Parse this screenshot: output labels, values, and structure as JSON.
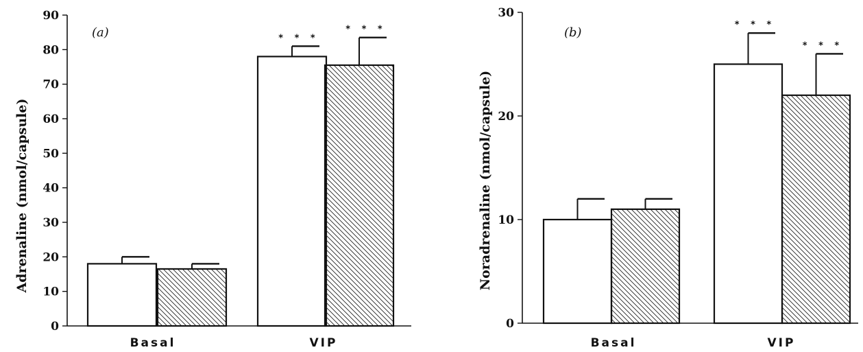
{
  "chart_data": [
    {
      "type": "bar",
      "panel_label": "(a)",
      "ylabel": "Adrenaline (nmol/capsule)",
      "xlabel": "",
      "categories": [
        "Basal",
        "VIP"
      ],
      "ylim": [
        0,
        90
      ],
      "yticks": [
        0,
        10,
        20,
        30,
        40,
        50,
        60,
        70,
        80,
        90
      ],
      "grid": false,
      "series": [
        {
          "pattern": "open",
          "values": [
            18,
            78
          ],
          "errors": [
            2,
            3
          ]
        },
        {
          "pattern": "hatched",
          "values": [
            16.5,
            75.5
          ],
          "errors": [
            1.5,
            8
          ]
        }
      ],
      "significance": [
        {
          "category": "VIP",
          "series": 0,
          "label": "* * *"
        },
        {
          "category": "VIP",
          "series": 1,
          "label": "* * *"
        }
      ]
    },
    {
      "type": "bar",
      "panel_label": "(b)",
      "ylabel": "Noradrenaline  (nmol/capsule)",
      "xlabel": "",
      "categories": [
        "Basal",
        "VIP"
      ],
      "ylim": [
        0,
        30
      ],
      "yticks": [
        0,
        10,
        20,
        30
      ],
      "grid": false,
      "series": [
        {
          "pattern": "open",
          "values": [
            10,
            25
          ],
          "errors": [
            2,
            3
          ]
        },
        {
          "pattern": "hatched",
          "values": [
            11,
            22
          ],
          "errors": [
            1,
            4
          ]
        }
      ],
      "significance": [
        {
          "category": "VIP",
          "series": 0,
          "label": "* * *"
        },
        {
          "category": "VIP",
          "series": 1,
          "label": "* * *"
        }
      ]
    }
  ]
}
